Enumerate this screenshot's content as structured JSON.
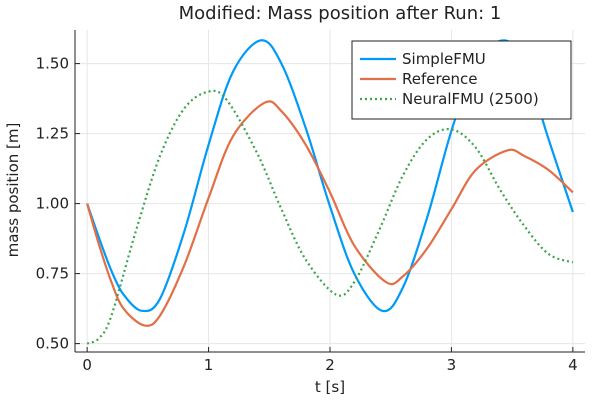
{
  "chart_data": {
    "type": "line",
    "title": "Modified: Mass position after Run: 1",
    "xlabel": "t [s]",
    "ylabel": "mass position [m]",
    "xlim": [
      -0.1,
      4.1
    ],
    "ylim": [
      0.47,
      1.62
    ],
    "xticks": [
      0,
      1,
      2,
      3,
      4
    ],
    "xtick_labels": [
      "0",
      "1",
      "2",
      "3",
      "4"
    ],
    "yticks": [
      0.5,
      0.75,
      1.0,
      1.25,
      1.5
    ],
    "ytick_labels": [
      "0.50",
      "0.75",
      "1.00",
      "1.25",
      "1.50"
    ],
    "grid": true,
    "legend_position": "top-right",
    "series": [
      {
        "name": "SimpleFMU",
        "color": "#009af9",
        "style": "solid",
        "x": [
          0,
          0.1,
          0.2,
          0.3,
          0.45,
          0.6,
          0.8,
          1.0,
          1.2,
          1.43,
          1.6,
          1.8,
          2.0,
          2.2,
          2.43,
          2.6,
          2.8,
          3.0,
          3.2,
          3.43,
          3.6,
          3.8,
          4.0
        ],
        "y": [
          1.0,
          0.875,
          0.76,
          0.675,
          0.617,
          0.66,
          0.9,
          1.21,
          1.47,
          1.583,
          1.5,
          1.27,
          0.99,
          0.75,
          0.617,
          0.7,
          0.95,
          1.26,
          1.5,
          1.583,
          1.5,
          1.23,
          0.97
        ]
      },
      {
        "name": "Reference",
        "color": "#e26f46",
        "style": "solid",
        "x": [
          0,
          0.1,
          0.2,
          0.3,
          0.47,
          0.6,
          0.8,
          1.0,
          1.2,
          1.46,
          1.6,
          1.8,
          2.0,
          2.2,
          2.46,
          2.6,
          2.8,
          3.0,
          3.2,
          3.46,
          3.6,
          3.8,
          4.0
        ],
        "y": [
          1.0,
          0.85,
          0.72,
          0.625,
          0.565,
          0.6,
          0.78,
          1.02,
          1.24,
          1.36,
          1.33,
          1.21,
          1.04,
          0.85,
          0.72,
          0.74,
          0.84,
          0.98,
          1.12,
          1.19,
          1.17,
          1.12,
          1.04
        ]
      },
      {
        "name": "NeuralFMU (2500)",
        "color": "#3da44d",
        "style": "dotted",
        "x": [
          0,
          0.1,
          0.2,
          0.4,
          0.6,
          0.8,
          1.0,
          1.15,
          1.4,
          1.6,
          1.8,
          2.05,
          2.2,
          2.4,
          2.6,
          2.8,
          3.0,
          3.2,
          3.4,
          3.6,
          3.8,
          4.0
        ],
        "y": [
          0.5,
          0.52,
          0.6,
          0.9,
          1.17,
          1.34,
          1.4,
          1.37,
          1.18,
          0.98,
          0.8,
          0.675,
          0.72,
          0.9,
          1.1,
          1.23,
          1.265,
          1.2,
          1.05,
          0.92,
          0.82,
          0.79
        ]
      }
    ]
  }
}
